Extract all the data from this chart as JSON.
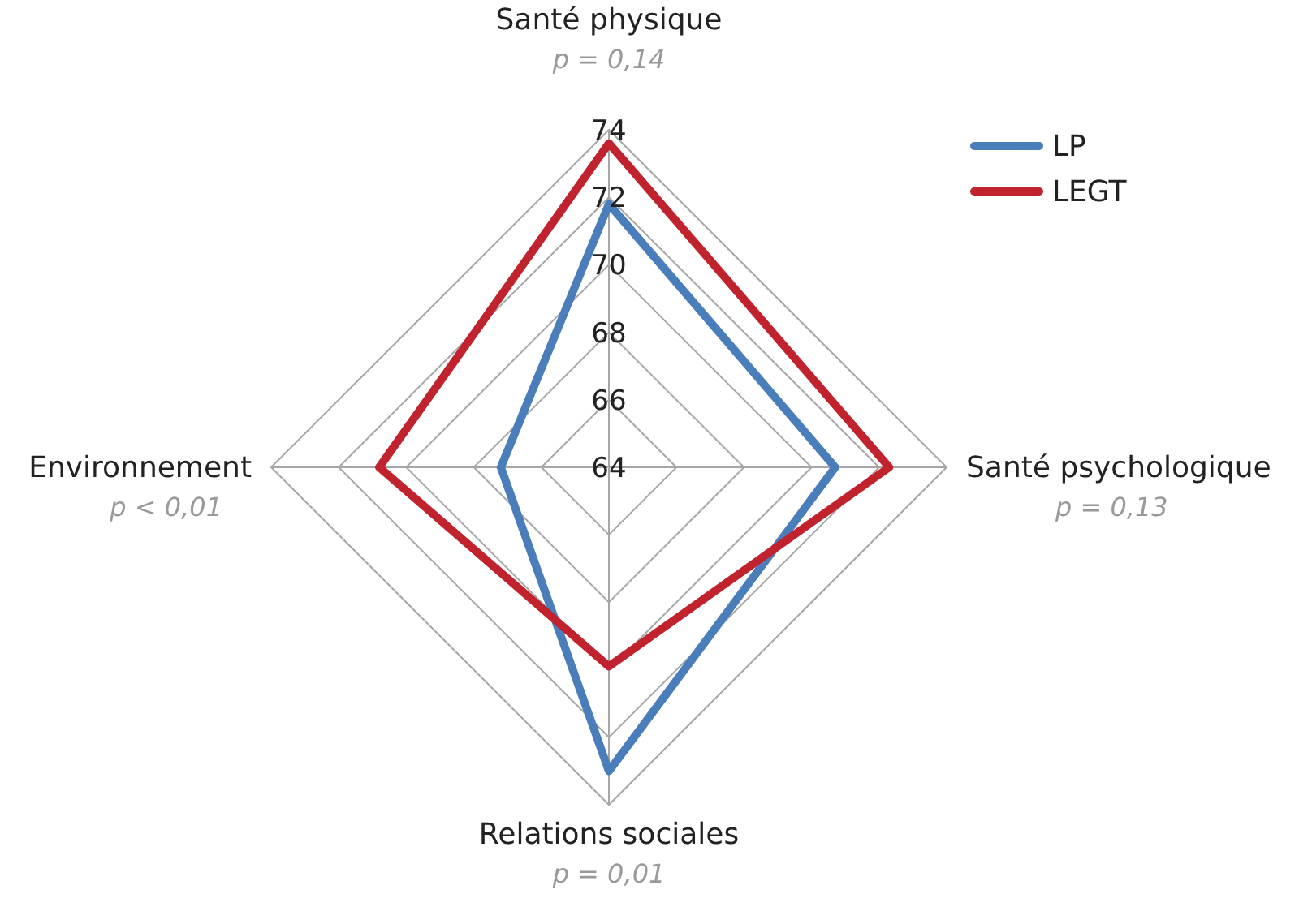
{
  "chart_data": {
    "type": "radar",
    "categories": [
      "Santé physique",
      "Santé psychologique",
      "Relations sociales",
      "Environnement"
    ],
    "series": [
      {
        "name": "LP",
        "color": "#4a7ebb",
        "values": [
          71.8,
          70.7,
          73.0,
          67.2
        ]
      },
      {
        "name": "LEGT",
        "color": "#c0232d",
        "values": [
          73.6,
          72.3,
          69.9,
          70.8
        ]
      }
    ],
    "ylim": [
      64,
      74
    ],
    "yticks": [
      64,
      66,
      68,
      70,
      72,
      74
    ],
    "grid": true,
    "legend": "top right",
    "annotations": [
      "p = 0,14",
      "p = 0,13",
      "p = 0,01",
      "p < 0,01"
    ]
  }
}
